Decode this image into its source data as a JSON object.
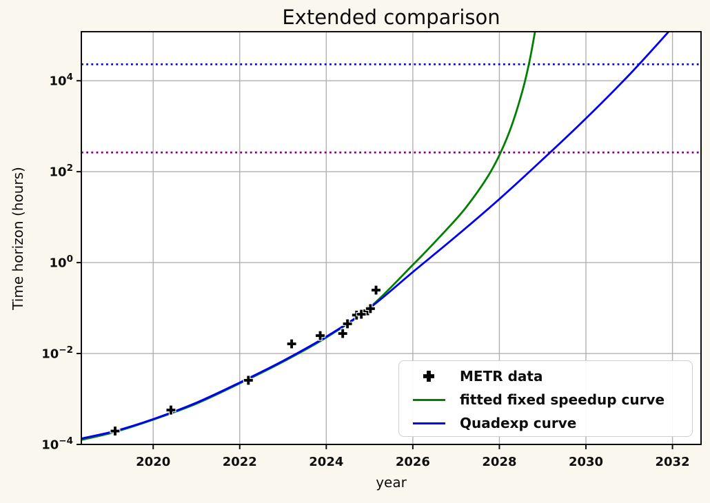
{
  "chart_data": {
    "type": "line",
    "title": "Extended comparison",
    "xlabel": "year",
    "ylabel": "Time horizon (hours)",
    "xlim": [
      2018.34,
      2032.66
    ],
    "ylim": [
      0.0001,
      120000
    ],
    "y_scale": "log",
    "grid": true,
    "legend_position": "lower right",
    "colors": {
      "background": "#faf8ee",
      "plot_background": "#ffffff",
      "grid": "#b0b0b0",
      "spine": "#0d0d0d",
      "blue_hline": "#0000d8",
      "purple_hline": "#800080"
    },
    "x_ticks": [
      {
        "value": 2020,
        "label": "2020"
      },
      {
        "value": 2022,
        "label": "2022"
      },
      {
        "value": 2024,
        "label": "2024"
      },
      {
        "value": 2026,
        "label": "2026"
      },
      {
        "value": 2028,
        "label": "2028"
      },
      {
        "value": 2030,
        "label": "2030"
      },
      {
        "value": 2032,
        "label": "2032"
      }
    ],
    "y_ticks": [
      {
        "value": 10000,
        "label": "10^4"
      },
      {
        "value": 100,
        "label": "10^2"
      },
      {
        "value": 1,
        "label": "10^0"
      },
      {
        "value": 0.01,
        "label": "10^−2"
      },
      {
        "value": 0.0001,
        "label": "10^−4"
      }
    ],
    "hlines": [
      {
        "name": "upper-threshold-line",
        "value": 23000,
        "color": "#0000d8",
        "style": "dotted"
      },
      {
        "name": "lower-threshold-line",
        "value": 265,
        "color": "#800080",
        "style": "dotted"
      }
    ],
    "series": [
      {
        "name": "METR data",
        "kind": "scatter",
        "marker": "plus",
        "color": "#000000",
        "points": [
          [
            2019.12,
            0.000197
          ],
          [
            2020.41,
            0.00057
          ],
          [
            2022.2,
            0.00257
          ],
          [
            2023.2,
            0.0163
          ],
          [
            2023.86,
            0.0248
          ],
          [
            2024.38,
            0.0275
          ],
          [
            2024.49,
            0.045
          ],
          [
            2024.7,
            0.07
          ],
          [
            2024.81,
            0.073
          ],
          [
            2024.96,
            0.087
          ],
          [
            2025.02,
            0.097
          ],
          [
            2025.15,
            0.248
          ]
        ]
      },
      {
        "name": "fitted fixed speedup curve",
        "kind": "line",
        "color": "#007f00",
        "points": [
          [
            2018.34,
            0.000126
          ],
          [
            2019.1,
            0.000186
          ],
          [
            2020.0,
            0.00035
          ],
          [
            2021.0,
            0.00079
          ],
          [
            2022.0,
            0.0022
          ],
          [
            2023.0,
            0.0066
          ],
          [
            2024.0,
            0.0225
          ],
          [
            2025.0,
            0.102
          ],
          [
            2026.0,
            0.89
          ],
          [
            2026.6,
            3.5
          ],
          [
            2027.22,
            16
          ],
          [
            2027.8,
            100
          ],
          [
            2028.2,
            630
          ],
          [
            2028.5,
            4600
          ],
          [
            2028.7,
            28000
          ],
          [
            2028.9,
            316000
          ]
        ]
      },
      {
        "name": "Quadexp curve",
        "kind": "line",
        "color": "#0000f5",
        "points": [
          [
            2018.34,
            0.000135
          ],
          [
            2019.1,
            0.000195
          ],
          [
            2020.0,
            0.00036
          ],
          [
            2021.0,
            0.00083
          ],
          [
            2022.0,
            0.0023
          ],
          [
            2023.0,
            0.0069
          ],
          [
            2024.0,
            0.0235
          ],
          [
            2025.0,
            0.1
          ],
          [
            2026.0,
            0.62
          ],
          [
            2027.0,
            3.8
          ],
          [
            2028.0,
            25
          ],
          [
            2029.0,
            186
          ],
          [
            2030.0,
            1480
          ],
          [
            2031.0,
            13500
          ],
          [
            2031.95,
            132000
          ],
          [
            2032.4,
            400000
          ]
        ]
      }
    ]
  }
}
